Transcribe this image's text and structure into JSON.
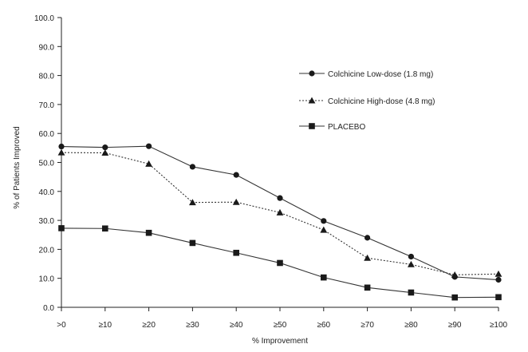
{
  "chart_data": {
    "type": "line",
    "xlabel": "% Improvement",
    "ylabel": "% of Patients Improved",
    "categories": [
      ">0",
      "≥10",
      "≥20",
      "≥30",
      "≥40",
      "≥50",
      "≥60",
      "≥70",
      "≥80",
      "≥90",
      "≥100"
    ],
    "yticks": [
      "0.0",
      "10.0",
      "20.0",
      "30.0",
      "40.0",
      "50.0",
      "60.0",
      "70.0",
      "80.0",
      "90.0",
      "100.0"
    ],
    "ylim": [
      0,
      100
    ],
    "grid": false,
    "legend_position": "right",
    "series": [
      {
        "name": "Colchicine Low-dose (1.8 mg)",
        "marker": "circle",
        "line_style": "solid",
        "values": [
          55.5,
          55.2,
          55.6,
          48.5,
          45.7,
          37.7,
          29.8,
          24.0,
          17.5,
          10.5,
          9.5
        ]
      },
      {
        "name": "Colchicine High-dose (4.8 mg)",
        "marker": "triangle",
        "line_style": "dotted",
        "values": [
          53.4,
          53.3,
          49.5,
          36.2,
          36.3,
          32.7,
          26.7,
          17.0,
          14.8,
          11.2,
          11.5
        ]
      },
      {
        "name": "PLACEBO",
        "marker": "square",
        "line_style": "solid",
        "values": [
          27.3,
          27.2,
          25.7,
          22.2,
          18.8,
          15.3,
          10.3,
          6.8,
          5.1,
          3.4,
          3.5
        ]
      }
    ]
  }
}
